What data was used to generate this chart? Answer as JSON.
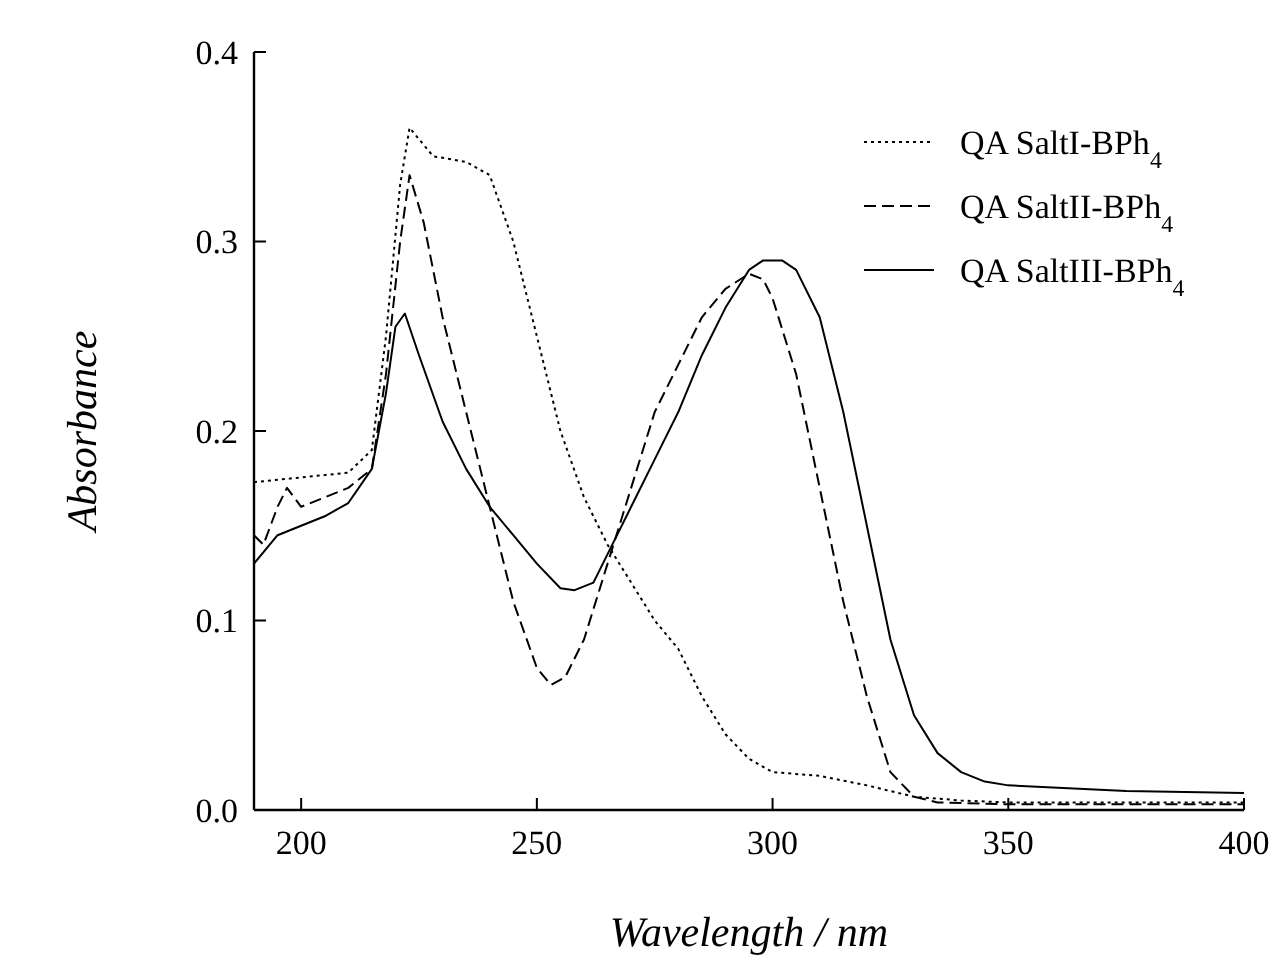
{
  "chart_data": {
    "type": "line",
    "xlabel": "Wavelength / nm",
    "ylabel": "Absorbance",
    "xlim": [
      190,
      400
    ],
    "xticks": [
      200,
      250,
      300,
      350,
      400
    ],
    "ylim": [
      0,
      0.4
    ],
    "yticks": [
      {
        "value": 0,
        "label": "0.0"
      },
      {
        "value": 0.1,
        "label": "0.1"
      },
      {
        "value": 0.2,
        "label": "0.2"
      },
      {
        "value": 0.3,
        "label": "0.3"
      },
      {
        "value": 0.4,
        "label": "0.4"
      }
    ],
    "grid": false,
    "legend": "top right",
    "series": [
      {
        "name": "QA SaltI-BPh$_{4}$",
        "color": "#000000",
        "line_style": "dotted",
        "x": [
          190,
          210,
          215,
          218,
          221,
          223,
          228,
          235,
          240,
          245,
          250,
          255,
          260,
          265,
          270,
          275,
          280,
          285,
          290,
          295,
          300,
          310,
          320,
          330,
          340,
          350,
          400
        ],
        "values": [
          0.173,
          0.178,
          0.19,
          0.25,
          0.33,
          0.36,
          0.345,
          0.342,
          0.335,
          0.3,
          0.25,
          0.2,
          0.165,
          0.14,
          0.12,
          0.1,
          0.085,
          0.06,
          0.04,
          0.027,
          0.02,
          0.018,
          0.013,
          0.007,
          0.005,
          0.004,
          0.004
        ]
      },
      {
        "name": "QA SaltII-BPh$_{4}$",
        "color": "#000000",
        "line_style": "dashed",
        "x": [
          190,
          192,
          195,
          197,
          200,
          205,
          210,
          215,
          218,
          221,
          223,
          226,
          230,
          235,
          240,
          245,
          250,
          253,
          256,
          260,
          265,
          270,
          275,
          280,
          285,
          290,
          295,
          298,
          300,
          305,
          310,
          315,
          320,
          325,
          330,
          335,
          350,
          400
        ],
        "values": [
          0.145,
          0.14,
          0.16,
          0.17,
          0.16,
          0.165,
          0.17,
          0.18,
          0.23,
          0.3,
          0.335,
          0.31,
          0.26,
          0.21,
          0.16,
          0.11,
          0.075,
          0.066,
          0.07,
          0.09,
          0.13,
          0.17,
          0.21,
          0.235,
          0.26,
          0.275,
          0.283,
          0.28,
          0.27,
          0.23,
          0.17,
          0.11,
          0.06,
          0.02,
          0.007,
          0.004,
          0.003,
          0.003
        ]
      },
      {
        "name": "QA SaltIII-BPh$_{4}$",
        "color": "#000000",
        "line_style": "solid",
        "x": [
          190,
          195,
          200,
          205,
          210,
          215,
          218,
          220,
          222,
          225,
          230,
          235,
          240,
          245,
          250,
          255,
          258,
          262,
          265,
          270,
          275,
          280,
          285,
          290,
          295,
          298,
          302,
          305,
          310,
          315,
          320,
          325,
          330,
          335,
          340,
          345,
          350,
          375,
          400
        ],
        "values": [
          0.13,
          0.145,
          0.15,
          0.155,
          0.162,
          0.18,
          0.22,
          0.255,
          0.262,
          0.24,
          0.205,
          0.18,
          0.16,
          0.145,
          0.13,
          0.117,
          0.116,
          0.12,
          0.135,
          0.16,
          0.185,
          0.21,
          0.24,
          0.265,
          0.285,
          0.29,
          0.29,
          0.285,
          0.26,
          0.21,
          0.15,
          0.09,
          0.05,
          0.03,
          0.02,
          0.015,
          0.013,
          0.01,
          0.009
        ]
      }
    ]
  }
}
